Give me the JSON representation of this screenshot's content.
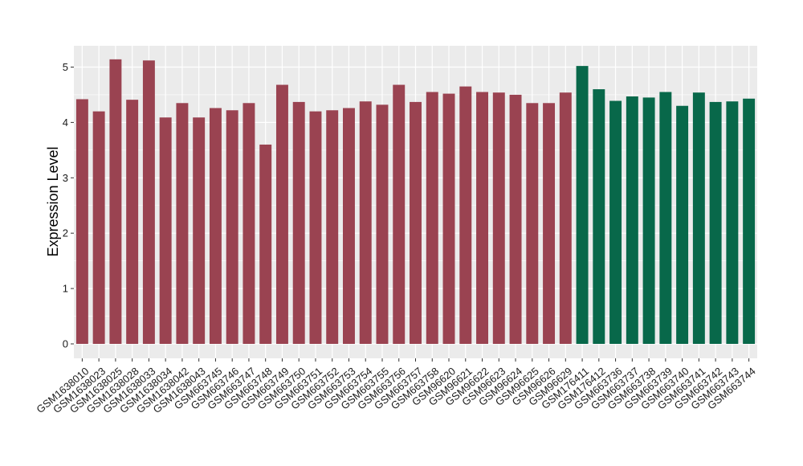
{
  "chart_data": {
    "type": "bar",
    "title": "",
    "xlabel": "",
    "ylabel": "Expression Level",
    "ylim": [
      0,
      5.3
    ],
    "yticks": [
      0,
      1,
      2,
      3,
      4,
      5
    ],
    "grid": true,
    "legend": "none",
    "colors": {
      "group1": "#9a4351",
      "group2": "#08684a",
      "panel": "#ebebeb",
      "gridline": "#ffffff"
    },
    "categories": [
      "GSM1638010",
      "GSM1638023",
      "GSM1638025",
      "GSM1638028",
      "GSM1638033",
      "GSM1638034",
      "GSM1638042",
      "GSM1638043",
      "GSM663745",
      "GSM663746",
      "GSM663747",
      "GSM663748",
      "GSM663749",
      "GSM663750",
      "GSM663751",
      "GSM663752",
      "GSM663753",
      "GSM663754",
      "GSM663755",
      "GSM663756",
      "GSM663757",
      "GSM663758",
      "GSM96620",
      "GSM96621",
      "GSM96622",
      "GSM96623",
      "GSM96624",
      "GSM96625",
      "GSM96626",
      "GSM96629",
      "GSM176411",
      "GSM176412",
      "GSM663736",
      "GSM663737",
      "GSM663738",
      "GSM663739",
      "GSM663740",
      "GSM663741",
      "GSM663742",
      "GSM663743",
      "GSM663744"
    ],
    "values": [
      4.42,
      4.2,
      5.14,
      4.41,
      5.12,
      4.09,
      4.35,
      4.09,
      4.26,
      4.22,
      4.35,
      3.6,
      4.68,
      4.37,
      4.2,
      4.22,
      4.26,
      4.38,
      4.32,
      4.68,
      4.37,
      4.55,
      4.52,
      4.65,
      4.55,
      4.54,
      4.5,
      4.35,
      4.35,
      4.54,
      5.02,
      4.6,
      4.39,
      4.47,
      4.45,
      4.55,
      4.3,
      4.54,
      4.37,
      4.38,
      4.43
    ],
    "groups": [
      1,
      1,
      1,
      1,
      1,
      1,
      1,
      1,
      1,
      1,
      1,
      1,
      1,
      1,
      1,
      1,
      1,
      1,
      1,
      1,
      1,
      1,
      1,
      1,
      1,
      1,
      1,
      1,
      1,
      1,
      2,
      2,
      2,
      2,
      2,
      2,
      2,
      2,
      2,
      2,
      2
    ]
  }
}
